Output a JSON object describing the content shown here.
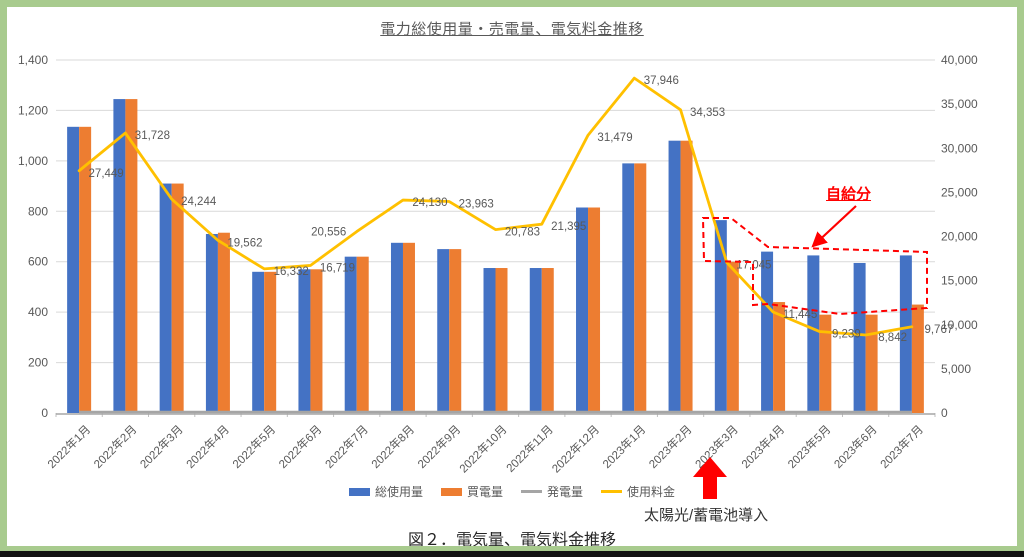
{
  "page": {
    "border_color": "#a8cb8e",
    "bottom_bar_color": "#121212"
  },
  "title": "電力総使用量・売電量、電気料金推移",
  "caption": "図２．電気量、電気料金推移",
  "annotations": {
    "self_supply_label": "自給分",
    "install_note": "太陽光/蓄電池導入",
    "annotation_color": "#ff0000"
  },
  "legend": [
    {
      "label": "総使用量",
      "swatch": "bar",
      "color": "#4472c4"
    },
    {
      "label": "買電量",
      "swatch": "bar",
      "color": "#ed7d31"
    },
    {
      "label": "発電量",
      "swatch": "line",
      "color": "#a5a5a5"
    },
    {
      "label": "使用料金",
      "swatch": "line",
      "color": "#ffc000"
    }
  ],
  "chart_data": {
    "type": "bar+line combo",
    "title": "電力総使用量・売電量、電気料金推移",
    "categories": [
      "2022年1月",
      "2022年2月",
      "2022年3月",
      "2022年4月",
      "2022年5月",
      "2022年6月",
      "2022年7月",
      "2022年8月",
      "2022年9月",
      "2022年10月",
      "2022年11月",
      "2022年12月",
      "2023年1月",
      "2023年2月",
      "2023年3月",
      "2023年4月",
      "2023年5月",
      "2023年6月",
      "2023年7月"
    ],
    "series": [
      {
        "name": "総使用量",
        "type": "bar",
        "axis": "left",
        "color": "#4472c4",
        "values": [
          1135,
          1245,
          910,
          710,
          560,
          570,
          620,
          675,
          650,
          575,
          575,
          815,
          990,
          1080,
          765,
          640,
          625,
          595,
          625
        ]
      },
      {
        "name": "買電量",
        "type": "bar",
        "axis": "left",
        "color": "#ed7d31",
        "values": [
          1135,
          1245,
          910,
          715,
          560,
          570,
          620,
          675,
          650,
          575,
          575,
          815,
          990,
          1080,
          600,
          440,
          390,
          390,
          430
        ]
      },
      {
        "name": "発電量",
        "type": "line",
        "axis": "left",
        "color": "#a5a5a5",
        "values": [
          0,
          0,
          0,
          0,
          0,
          0,
          0,
          0,
          0,
          0,
          0,
          0,
          0,
          0,
          0,
          0,
          0,
          0,
          0
        ]
      },
      {
        "name": "使用料金",
        "type": "line",
        "axis": "right",
        "color": "#ffc000",
        "data_labels": true,
        "values": [
          27449,
          31728,
          24244,
          19562,
          16332,
          16719,
          20556,
          24130,
          23963,
          20783,
          21395,
          31479,
          37946,
          34353,
          17045,
          11445,
          9239,
          8842,
          9767
        ]
      }
    ],
    "left_axis": {
      "min": 0,
      "max": 1400,
      "step": 200
    },
    "right_axis": {
      "min": 0,
      "max": 40000,
      "step": 5000
    },
    "grid": true,
    "legend_position": "bottom",
    "text_color": "#595959",
    "grid_color": "#d9d9d9"
  }
}
